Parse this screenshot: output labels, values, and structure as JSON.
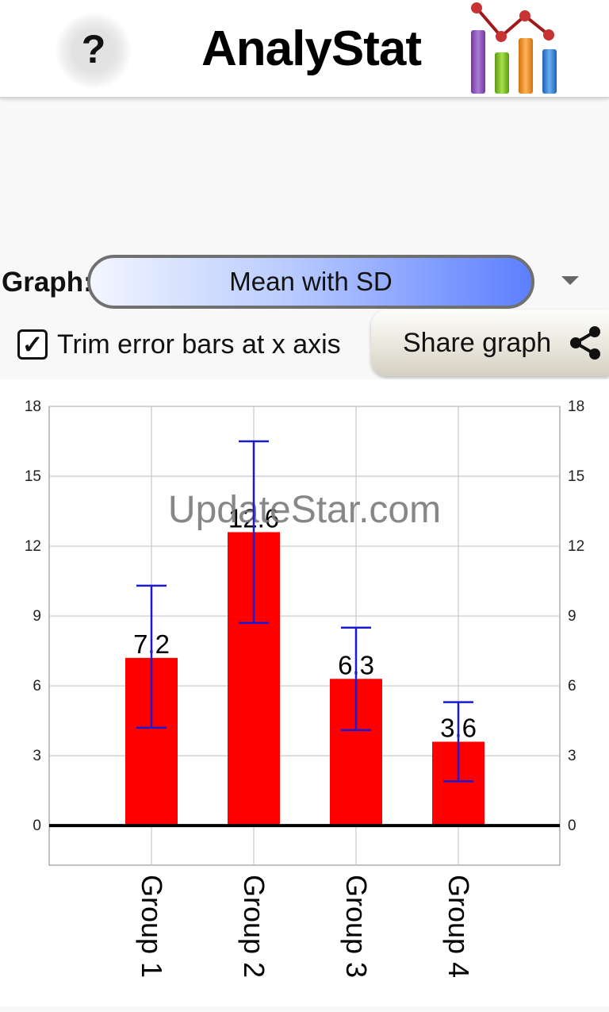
{
  "header": {
    "help_label": "?",
    "app_title": "AnalyStat"
  },
  "controls": {
    "graph_label": "Graph:",
    "graph_selected": "Mean with SD",
    "trim_checked": true,
    "trim_label": "Trim error bars at x axis",
    "share_label": "Share graph"
  },
  "watermark": "UpdateStar.com",
  "colors": {
    "bar": "#ff0000",
    "error_bar": "#1a1ad0",
    "grid": "#c8c8c8"
  },
  "chart_data": {
    "type": "bar",
    "categories": [
      "Group 1",
      "Group 2",
      "Group 3",
      "Group 4"
    ],
    "values": [
      7.2,
      12.6,
      6.3,
      3.6
    ],
    "value_labels": [
      "7.2",
      "12.6",
      "6.3",
      "3.6"
    ],
    "error_high": [
      10.3,
      16.5,
      8.5,
      5.3
    ],
    "error_low": [
      4.2,
      8.7,
      4.1,
      1.9
    ],
    "yticks": [
      "18",
      "15",
      "12",
      "9",
      "6",
      "3",
      "0"
    ],
    "ylim": [
      -1.7,
      18
    ],
    "grid": true,
    "secondary_y_axis": true,
    "xlabel_rotation": "vertical"
  }
}
